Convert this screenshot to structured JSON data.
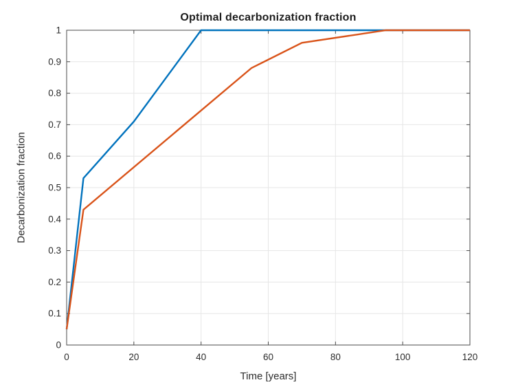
{
  "chart_data": {
    "type": "line",
    "title": "Optimal decarbonization fraction",
    "xlabel": "Time [years]",
    "ylabel": "Decarbonization fraction",
    "xlim": [
      0,
      120
    ],
    "ylim": [
      0,
      1
    ],
    "xticks": [
      0,
      20,
      40,
      60,
      80,
      100,
      120
    ],
    "xtick_labels": [
      "0",
      "20",
      "40",
      "60",
      "80",
      "100",
      "120"
    ],
    "yticks": [
      0,
      0.1,
      0.2,
      0.3,
      0.4,
      0.5,
      0.6,
      0.7,
      0.8,
      0.9,
      1
    ],
    "ytick_labels": [
      "0",
      "0.1",
      "0.2",
      "0.3",
      "0.4",
      "0.5",
      "0.6",
      "0.7",
      "0.8",
      "0.9",
      "1"
    ],
    "grid": true,
    "legend": "none",
    "series": [
      {
        "id": "blue-series",
        "color": "#0072BD",
        "points": [
          [
            0,
            0.05
          ],
          [
            5,
            0.53
          ],
          [
            20,
            0.71
          ],
          [
            40,
            1.0
          ],
          [
            120,
            1.0
          ]
        ]
      },
      {
        "id": "orange-series",
        "color": "#D95319",
        "points": [
          [
            0,
            0.05
          ],
          [
            5,
            0.43
          ],
          [
            55,
            0.88
          ],
          [
            70,
            0.96
          ],
          [
            95,
            1.0
          ],
          [
            120,
            1.0
          ]
        ]
      }
    ],
    "colors": {
      "axis": "#4a4a4a",
      "grid": "#e6e6e6",
      "background": "#ffffff"
    }
  }
}
